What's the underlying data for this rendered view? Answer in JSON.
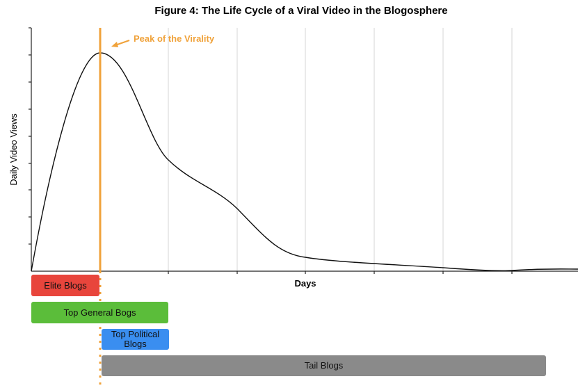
{
  "title": "Figure 4: The Life Cycle of a Viral Video in the Blogosphere",
  "y_axis_label": "Daily Video Views",
  "x_axis_label": "Days",
  "annotation": "Peak of the Virality",
  "bars": [
    {
      "label": "Elite Blogs"
    },
    {
      "label": "Top General Bogs"
    },
    {
      "label": "Top Political Blogs"
    },
    {
      "label": "Tail Blogs"
    }
  ]
}
